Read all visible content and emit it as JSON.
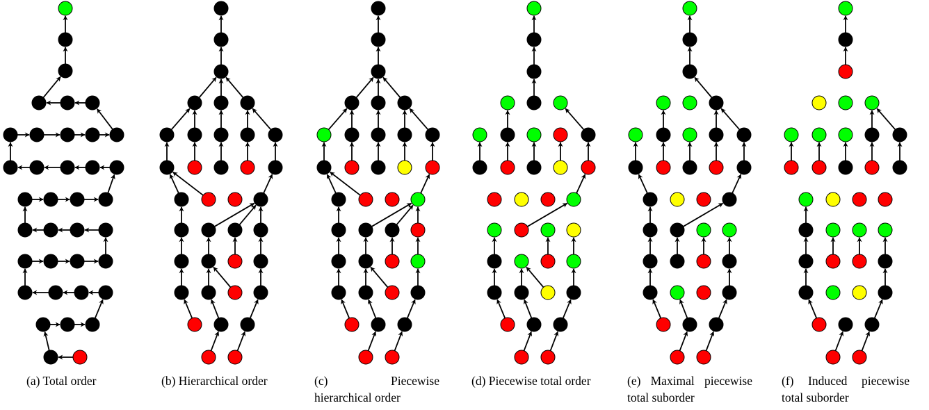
{
  "colors": {
    "black": "#000000",
    "green": "#00ff00",
    "red": "#ff0000",
    "yellow": "#ffff00"
  },
  "panels": [
    {
      "caption": "(a) Total order"
    },
    {
      "caption": "(b) Hierarchical order"
    },
    {
      "caption": "(c) Piecewise hierarchical order"
    },
    {
      "caption": "(d) Piecewise total order"
    },
    {
      "caption": "(e) Maximal piecewise total suborder"
    },
    {
      "caption": "(f) Induced piecewise total suborder"
    }
  ]
}
